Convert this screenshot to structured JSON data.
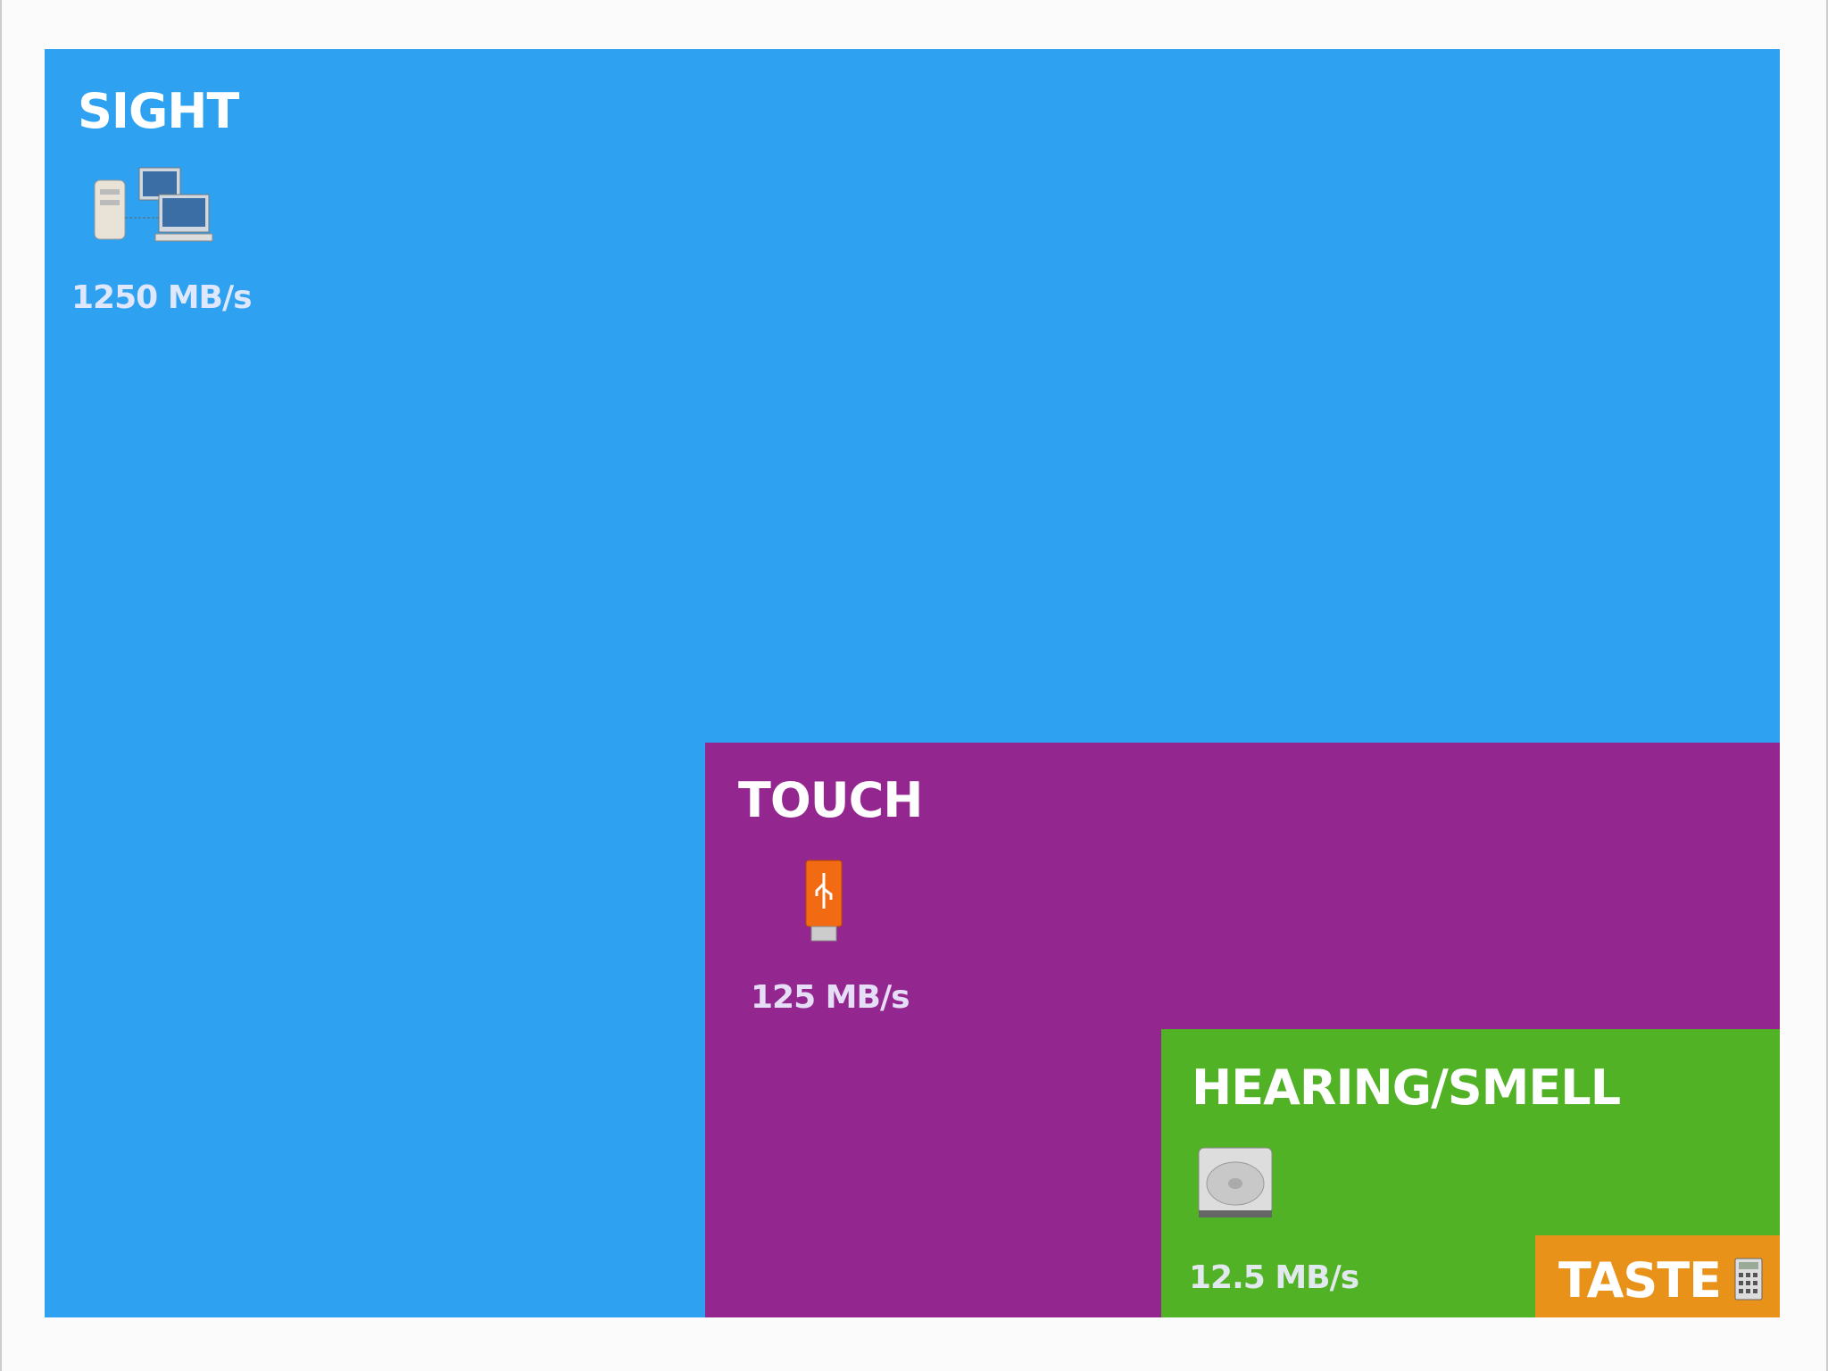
{
  "panels": [
    {
      "label": "SIGHT",
      "rate": "1250 MB/s"
    },
    {
      "label": "TOUCH",
      "rate": "125 MB/s"
    },
    {
      "label": "HEARING/SMELL",
      "rate": "12.5 MB/s"
    },
    {
      "label": "TASTE"
    }
  ]
}
